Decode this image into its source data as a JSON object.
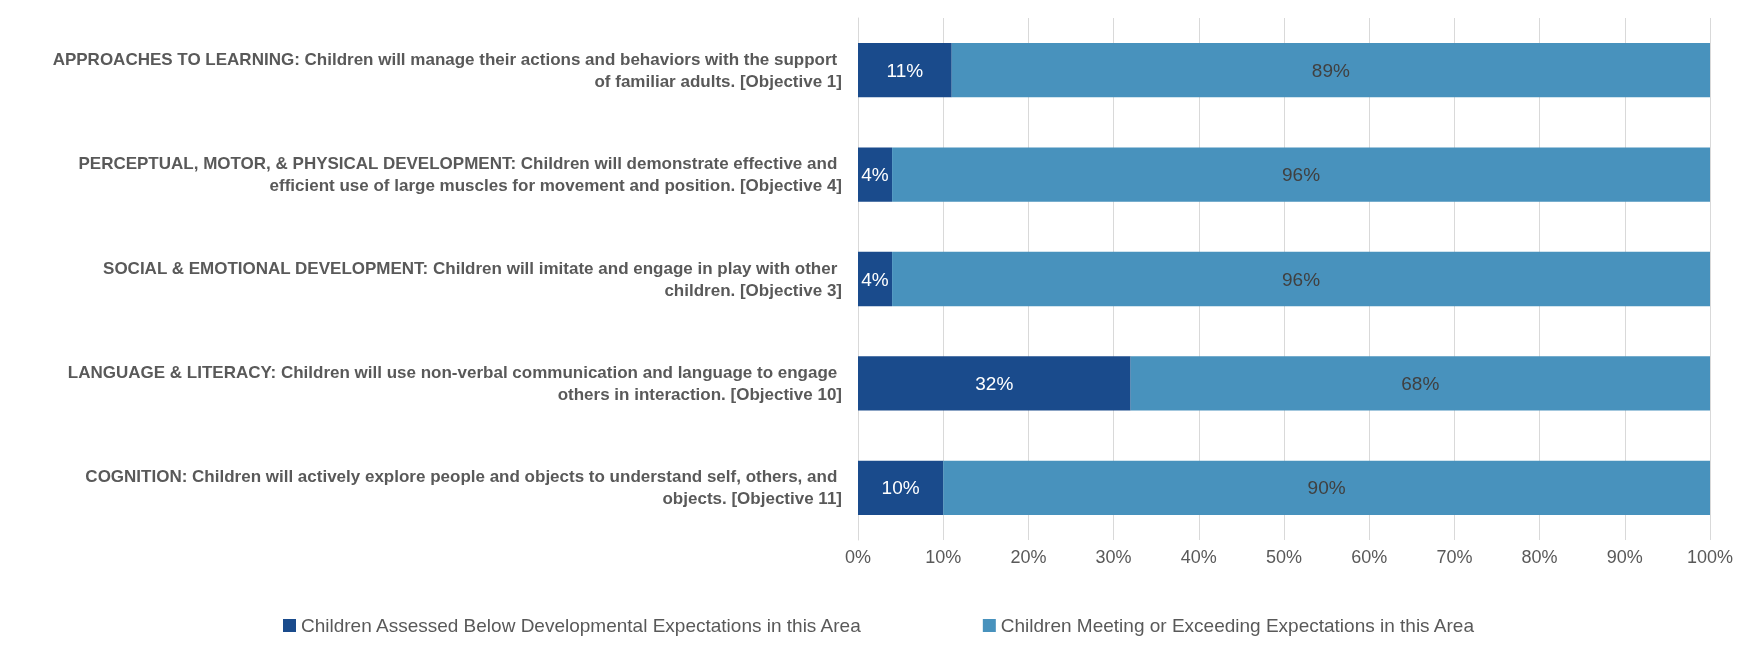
{
  "chart_data": {
    "type": "bar",
    "orientation": "horizontal",
    "stacked": true,
    "categories": [
      "APPROACHES TO LEARNING: Children will manage their actions and behaviors with the support of familiar adults. [Objective 1]",
      "PERCEPTUAL, MOTOR, & PHYSICAL DEVELOPMENT: Children will demonstrate effective and efficient use of large muscles for movement and position. [Objective 4]",
      "SOCIAL & EMOTIONAL DEVELOPMENT: Children will imitate and engage in play with other children. [Objective 3]",
      "LANGUAGE & LITERACY: Children will use non-verbal communication and language to engage others in interaction. [Objective 10]",
      "COGNITION: Children will actively explore people and objects to understand self, others, and objects. [Objective 11]"
    ],
    "series": [
      {
        "name": "Children Assessed Below Developmental Expectations in this Area",
        "color": "#1a4b8c",
        "values": [
          11,
          4,
          4,
          32,
          10
        ],
        "value_labels": [
          "11%",
          "4%",
          "4%",
          "32%",
          "10%"
        ]
      },
      {
        "name": "Children Meeting or Exceeding Expectations in this Area",
        "color": "#4892bd",
        "values": [
          89,
          96,
          96,
          68,
          90
        ],
        "value_labels": [
          "89%",
          "96%",
          "96%",
          "68%",
          "90%"
        ]
      }
    ],
    "xlim": [
      0,
      100
    ],
    "xticks": [
      {
        "value": 0,
        "label": "0%"
      },
      {
        "value": 10,
        "label": "10%"
      },
      {
        "value": 20,
        "label": "20%"
      },
      {
        "value": 30,
        "label": "30%"
      },
      {
        "value": 40,
        "label": "40%"
      },
      {
        "value": 50,
        "label": "50%"
      },
      {
        "value": 60,
        "label": "60%"
      },
      {
        "value": 70,
        "label": "70%"
      },
      {
        "value": 80,
        "label": "80%"
      },
      {
        "value": 90,
        "label": "90%"
      },
      {
        "value": 100,
        "label": "100%"
      }
    ],
    "grid": "x",
    "legend": "bottom"
  }
}
